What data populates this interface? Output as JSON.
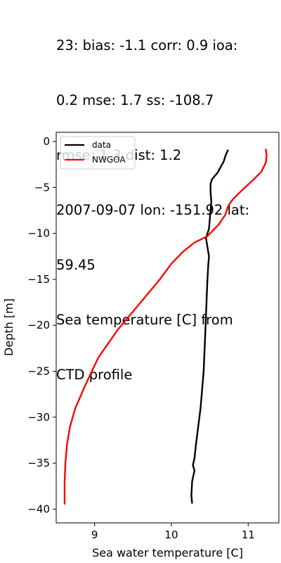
{
  "chart_data": {
    "type": "line",
    "title_lines": [
      "23: bias: -1.1  corr: 0.9  ioa:",
      "0.2  mse: 1.7  ss: -108.7",
      "rmse: 1.3  dist: 1.2",
      "2007-09-07 lon: -151.92 lat:",
      "59.45",
      "Sea temperature [C] from",
      "CTD profile"
    ],
    "xlabel": "Sea water temperature [C]",
    "ylabel": "Depth [m]",
    "xlim": [
      8.5,
      11.4
    ],
    "ylim": [
      -41.5,
      1.0
    ],
    "xticks": [
      9,
      10,
      11
    ],
    "xtick_labels": [
      "9",
      "10",
      "11"
    ],
    "yticks": [
      0,
      -5,
      -10,
      -15,
      -20,
      -25,
      -30,
      -35,
      -40
    ],
    "ytick_labels": [
      "0",
      "−5",
      "−10",
      "−15",
      "−20",
      "−25",
      "−30",
      "−35",
      "−40"
    ],
    "legend_position": "top-left",
    "grid": false,
    "series": [
      {
        "name": "data",
        "color": "#000000",
        "points": [
          [
            10.74,
            -0.9
          ],
          [
            10.71,
            -1.4
          ],
          [
            10.68,
            -2.2
          ],
          [
            10.64,
            -2.8
          ],
          [
            10.6,
            -3.4
          ],
          [
            10.56,
            -3.8
          ],
          [
            10.53,
            -4.1
          ],
          [
            10.51,
            -4.6
          ],
          [
            10.51,
            -5.5
          ],
          [
            10.52,
            -6.5
          ],
          [
            10.51,
            -7.5
          ],
          [
            10.5,
            -8.5
          ],
          [
            10.49,
            -9.5
          ],
          [
            10.45,
            -10.5
          ],
          [
            10.47,
            -11.5
          ],
          [
            10.49,
            -12.5
          ],
          [
            10.48,
            -13.5
          ],
          [
            10.47,
            -15
          ],
          [
            10.46,
            -17
          ],
          [
            10.45,
            -19
          ],
          [
            10.44,
            -21
          ],
          [
            10.43,
            -23
          ],
          [
            10.42,
            -25
          ],
          [
            10.4,
            -27
          ],
          [
            10.38,
            -29
          ],
          [
            10.35,
            -31
          ],
          [
            10.32,
            -33
          ],
          [
            10.3,
            -34.5
          ],
          [
            10.28,
            -35.2
          ],
          [
            10.3,
            -35.8
          ],
          [
            10.27,
            -37
          ],
          [
            10.26,
            -38.5
          ],
          [
            10.27,
            -39.4
          ]
        ]
      },
      {
        "name": "NWGOA",
        "color": "#ff0000",
        "points": [
          [
            11.23,
            -0.8
          ],
          [
            11.24,
            -1.5
          ],
          [
            11.23,
            -2.3
          ],
          [
            11.17,
            -3.3
          ],
          [
            11.05,
            -4.3
          ],
          [
            10.92,
            -5.3
          ],
          [
            10.8,
            -6.3
          ],
          [
            10.74,
            -7.0
          ],
          [
            10.7,
            -8.0
          ],
          [
            10.62,
            -9.0
          ],
          [
            10.47,
            -10.3
          ],
          [
            10.3,
            -11.0
          ],
          [
            10.15,
            -12.0
          ],
          [
            10.0,
            -13.3
          ],
          [
            9.85,
            -15.0
          ],
          [
            9.6,
            -17.5
          ],
          [
            9.3,
            -20.5
          ],
          [
            9.05,
            -23.5
          ],
          [
            8.88,
            -26.5
          ],
          [
            8.75,
            -29.0
          ],
          [
            8.68,
            -31.0
          ],
          [
            8.64,
            -33.0
          ],
          [
            8.62,
            -35.0
          ],
          [
            8.61,
            -37.0
          ],
          [
            8.61,
            -39.5
          ]
        ]
      }
    ]
  }
}
